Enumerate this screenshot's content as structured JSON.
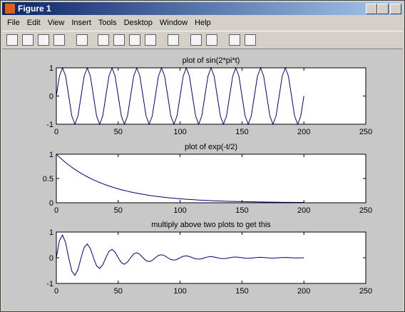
{
  "window": {
    "title": "Figure 1"
  },
  "menu": [
    "File",
    "Edit",
    "View",
    "Insert",
    "Tools",
    "Desktop",
    "Window",
    "Help"
  ],
  "chart_data": [
    {
      "type": "line",
      "title": "plot of sin(2*pi*t)",
      "x": [
        0,
        2.5,
        5,
        7.5,
        10,
        12.5,
        15,
        17.5,
        20,
        22.5,
        25,
        27.5,
        30,
        32.5,
        35,
        37.5,
        40,
        42.5,
        45,
        47.5,
        50,
        52.5,
        55,
        57.5,
        60,
        62.5,
        65,
        67.5,
        70,
        72.5,
        75,
        77.5,
        80,
        82.5,
        85,
        87.5,
        90,
        92.5,
        95,
        97.5,
        100,
        102.5,
        105,
        107.5,
        110,
        112.5,
        115,
        117.5,
        120,
        122.5,
        125,
        127.5,
        130,
        132.5,
        135,
        137.5,
        140,
        142.5,
        145,
        147.5,
        150,
        152.5,
        155,
        157.5,
        160,
        162.5,
        165,
        167.5,
        170,
        172.5,
        175,
        177.5,
        180,
        182.5,
        185,
        187.5,
        190,
        192.5,
        195,
        197.5,
        200
      ],
      "values": [
        0,
        0.707,
        1,
        0.707,
        0,
        -0.707,
        -1,
        -0.707,
        0,
        0.707,
        1,
        0.707,
        0,
        -0.707,
        -1,
        -0.707,
        0,
        0.707,
        1,
        0.707,
        0,
        -0.707,
        -1,
        -0.707,
        0,
        0.707,
        1,
        0.707,
        0,
        -0.707,
        -1,
        -0.707,
        0,
        0.707,
        1,
        0.707,
        0,
        -0.707,
        -1,
        -0.707,
        0,
        0.707,
        1,
        0.707,
        0,
        -0.707,
        -1,
        -0.707,
        0,
        0.707,
        1,
        0.707,
        0,
        -0.707,
        -1,
        -0.707,
        0,
        0.707,
        1,
        0.707,
        0,
        -0.707,
        -1,
        -0.707,
        0,
        0.707,
        1,
        0.707,
        0,
        -0.707,
        -1,
        -0.707,
        0,
        0.707,
        1,
        0.707,
        0,
        -0.707,
        -1,
        -0.707,
        0
      ],
      "color": "#00007f",
      "xlim": [
        0,
        250
      ],
      "xticks": [
        0,
        50,
        100,
        150,
        200,
        250
      ],
      "ylim": [
        -1,
        1
      ],
      "yticks": [
        -1,
        0,
        1
      ]
    },
    {
      "type": "line",
      "title": "plot of exp(-t/2)",
      "x": [
        0,
        2.5,
        5,
        7.5,
        10,
        12.5,
        15,
        17.5,
        20,
        22.5,
        25,
        27.5,
        30,
        32.5,
        35,
        37.5,
        40,
        42.5,
        45,
        47.5,
        50,
        52.5,
        55,
        57.5,
        60,
        62.5,
        65,
        67.5,
        70,
        72.5,
        75,
        77.5,
        80,
        82.5,
        85,
        87.5,
        90,
        92.5,
        95,
        97.5,
        100,
        102.5,
        105,
        107.5,
        110,
        112.5,
        115,
        117.5,
        120,
        122.5,
        125,
        127.5,
        130,
        132.5,
        135,
        137.5,
        140,
        142.5,
        145,
        147.5,
        150,
        152.5,
        155,
        157.5,
        160,
        162.5,
        165,
        167.5,
        170,
        172.5,
        175,
        177.5,
        180,
        182.5,
        185,
        187.5,
        190,
        192.5,
        195,
        197.5,
        200
      ],
      "values": [
        1,
        0.939,
        0.883,
        0.829,
        0.779,
        0.732,
        0.687,
        0.646,
        0.607,
        0.57,
        0.535,
        0.503,
        0.472,
        0.444,
        0.417,
        0.392,
        0.368,
        0.346,
        0.325,
        0.305,
        0.287,
        0.269,
        0.253,
        0.238,
        0.223,
        0.21,
        0.197,
        0.185,
        0.174,
        0.163,
        0.153,
        0.144,
        0.135,
        0.127,
        0.119,
        0.112,
        0.105,
        0.099,
        0.093,
        0.087,
        0.082,
        0.077,
        0.072,
        0.068,
        0.064,
        0.06,
        0.056,
        0.053,
        0.05,
        0.047,
        0.044,
        0.041,
        0.039,
        0.036,
        0.034,
        0.032,
        0.03,
        0.028,
        0.027,
        0.025,
        0.024,
        0.022,
        0.021,
        0.02,
        0.018,
        0.017,
        0.016,
        0.015,
        0.014,
        0.013,
        0.013,
        0.012,
        0.011,
        0.01,
        0.01,
        0.009,
        0.009,
        0.008,
        0.008,
        0.007,
        0.007
      ],
      "color": "#00007f",
      "xlim": [
        0,
        250
      ],
      "xticks": [
        0,
        50,
        100,
        150,
        200,
        250
      ],
      "ylim": [
        0,
        1
      ],
      "yticks": [
        0,
        0.5,
        1
      ]
    },
    {
      "type": "line",
      "title": "multiply above two plots to get this",
      "x": [
        0,
        2.5,
        5,
        7.5,
        10,
        12.5,
        15,
        17.5,
        20,
        22.5,
        25,
        27.5,
        30,
        32.5,
        35,
        37.5,
        40,
        42.5,
        45,
        47.5,
        50,
        52.5,
        55,
        57.5,
        60,
        62.5,
        65,
        67.5,
        70,
        72.5,
        75,
        77.5,
        80,
        82.5,
        85,
        87.5,
        90,
        92.5,
        95,
        97.5,
        100,
        102.5,
        105,
        107.5,
        110,
        112.5,
        115,
        117.5,
        120,
        122.5,
        125,
        127.5,
        130,
        132.5,
        135,
        137.5,
        140,
        142.5,
        145,
        147.5,
        150,
        152.5,
        155,
        157.5,
        160,
        162.5,
        165,
        167.5,
        170,
        172.5,
        175,
        177.5,
        180,
        182.5,
        185,
        187.5,
        190,
        192.5,
        195,
        197.5,
        200
      ],
      "values": [
        0,
        0.664,
        0.883,
        0.586,
        0,
        -0.517,
        -0.687,
        -0.456,
        0,
        0.403,
        0.535,
        0.356,
        0,
        -0.314,
        -0.417,
        -0.277,
        0,
        0.244,
        0.325,
        0.216,
        0,
        -0.19,
        -0.253,
        -0.168,
        0,
        0.148,
        0.197,
        0.131,
        0,
        -0.115,
        -0.153,
        -0.102,
        0,
        0.09,
        0.119,
        0.079,
        0,
        -0.07,
        -0.093,
        -0.062,
        0,
        0.055,
        0.072,
        0.048,
        0,
        -0.042,
        -0.056,
        -0.037,
        0,
        0.033,
        0.044,
        0.029,
        0,
        -0.026,
        -0.034,
        -0.023,
        0,
        0.02,
        0.027,
        0.018,
        0,
        -0.016,
        -0.021,
        -0.014,
        0,
        0.012,
        0.016,
        0.011,
        0,
        -0.009,
        -0.013,
        -0.008,
        0,
        0.007,
        0.01,
        0.007,
        0,
        -0.006,
        -0.008,
        -0.005,
        0
      ],
      "color": "#00007f",
      "xlim": [
        0,
        250
      ],
      "xticks": [
        0,
        50,
        100,
        150,
        200,
        250
      ],
      "ylim": [
        -1,
        1
      ],
      "yticks": [
        -1,
        0,
        1
      ]
    }
  ]
}
